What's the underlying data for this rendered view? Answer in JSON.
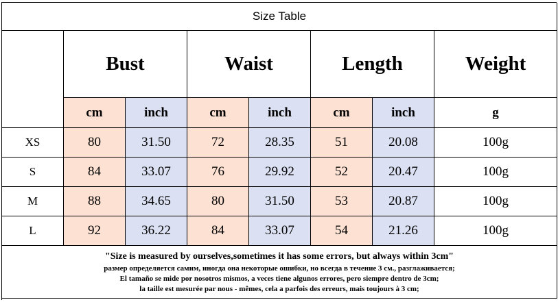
{
  "header": {
    "title": "Size Table"
  },
  "table": {
    "groups": [
      "Bust",
      "Waist",
      "Length",
      "Weight"
    ],
    "units": [
      "cm",
      "inch",
      "cm",
      "inch",
      "cm",
      "inch",
      "g"
    ],
    "rows": [
      [
        "XS",
        "80",
        "31.50",
        "72",
        "28.35",
        "51",
        "20.08",
        "100g"
      ],
      [
        "S",
        "84",
        "33.07",
        "76",
        "29.92",
        "52",
        "20.47",
        "100g"
      ],
      [
        "M",
        "88",
        "34.65",
        "80",
        "31.50",
        "53",
        "20.87",
        "100g"
      ],
      [
        "L",
        "92",
        "36.22",
        "84",
        "33.07",
        "54",
        "21.26",
        "100g"
      ]
    ]
  },
  "notes": [
    "\"Size is measured by ourselves,sometimes it has some errors, but always within 3cm\"",
    "размер определяется самим, иногда она некоторые ошибки, но всегда в течение 3 см., разглаживается;",
    "El tamaño se mide por nosotros mismos, a veces tiene algunos errores, pero siempre dentro de 3cm;",
    "la taille est mesurée par nous - mêmes, cela a parfois des erreurs, mais toujours à 3 cm;"
  ]
}
